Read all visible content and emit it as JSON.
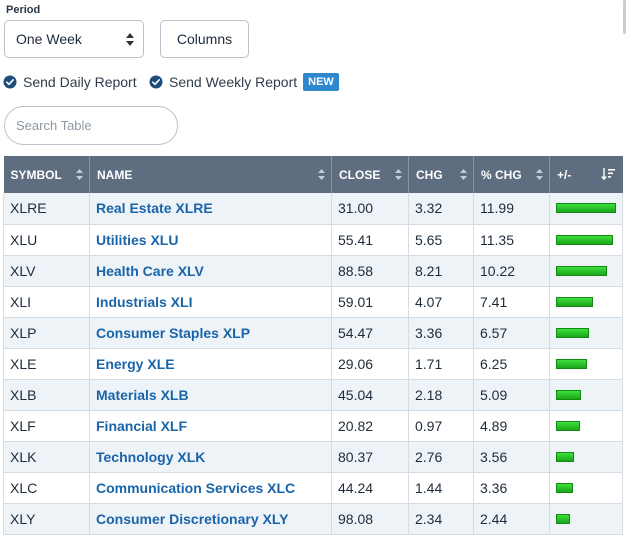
{
  "period": {
    "label": "Period",
    "selected": "One Week"
  },
  "toolbar": {
    "columns_label": "Columns"
  },
  "reports": {
    "daily_label": "Send Daily Report",
    "weekly_label": "Send Weekly Report",
    "new_badge": "NEW"
  },
  "search": {
    "placeholder": "Search Table",
    "value": ""
  },
  "table": {
    "headers": [
      "SYMBOL",
      "NAME",
      "CLOSE",
      "CHG",
      "% CHG",
      "+/-"
    ],
    "rows": [
      {
        "symbol": "XLRE",
        "name": "Real Estate XLRE",
        "close": "31.00",
        "chg": "3.32",
        "pct": "11.99",
        "pct_value": 11.99
      },
      {
        "symbol": "XLU",
        "name": "Utilities XLU",
        "close": "55.41",
        "chg": "5.65",
        "pct": "11.35",
        "pct_value": 11.35
      },
      {
        "symbol": "XLV",
        "name": "Health Care XLV",
        "close": "88.58",
        "chg": "8.21",
        "pct": "10.22",
        "pct_value": 10.22
      },
      {
        "symbol": "XLI",
        "name": "Industrials XLI",
        "close": "59.01",
        "chg": "4.07",
        "pct": "7.41",
        "pct_value": 7.41
      },
      {
        "symbol": "XLP",
        "name": "Consumer Staples XLP",
        "close": "54.47",
        "chg": "3.36",
        "pct": "6.57",
        "pct_value": 6.57
      },
      {
        "symbol": "XLE",
        "name": "Energy XLE",
        "close": "29.06",
        "chg": "1.71",
        "pct": "6.25",
        "pct_value": 6.25
      },
      {
        "symbol": "XLB",
        "name": "Materials XLB",
        "close": "45.04",
        "chg": "2.18",
        "pct": "5.09",
        "pct_value": 5.09
      },
      {
        "symbol": "XLF",
        "name": "Financial XLF",
        "close": "20.82",
        "chg": "0.97",
        "pct": "4.89",
        "pct_value": 4.89
      },
      {
        "symbol": "XLK",
        "name": "Technology XLK",
        "close": "80.37",
        "chg": "2.76",
        "pct": "3.56",
        "pct_value": 3.56
      },
      {
        "symbol": "XLC",
        "name": "Communication Services XLC",
        "close": "44.24",
        "chg": "1.44",
        "pct": "3.36",
        "pct_value": 3.36
      },
      {
        "symbol": "XLY",
        "name": "Consumer Discretionary XLY",
        "close": "98.08",
        "chg": "2.34",
        "pct": "2.44",
        "pct_value": 2.44
      }
    ]
  },
  "colors": {
    "header_bg": "#5e6d80",
    "link": "#1a64a8",
    "bar_green": "#22c422",
    "badge_blue": "#2e88cc",
    "row_stripe": "#eef3f8"
  },
  "icons": {
    "report_check": "check-circle-icon",
    "column_sort": "sort-updown-icon",
    "bar_sort": "sort-descending-icon",
    "select_arrows": "select-updown-icon"
  }
}
